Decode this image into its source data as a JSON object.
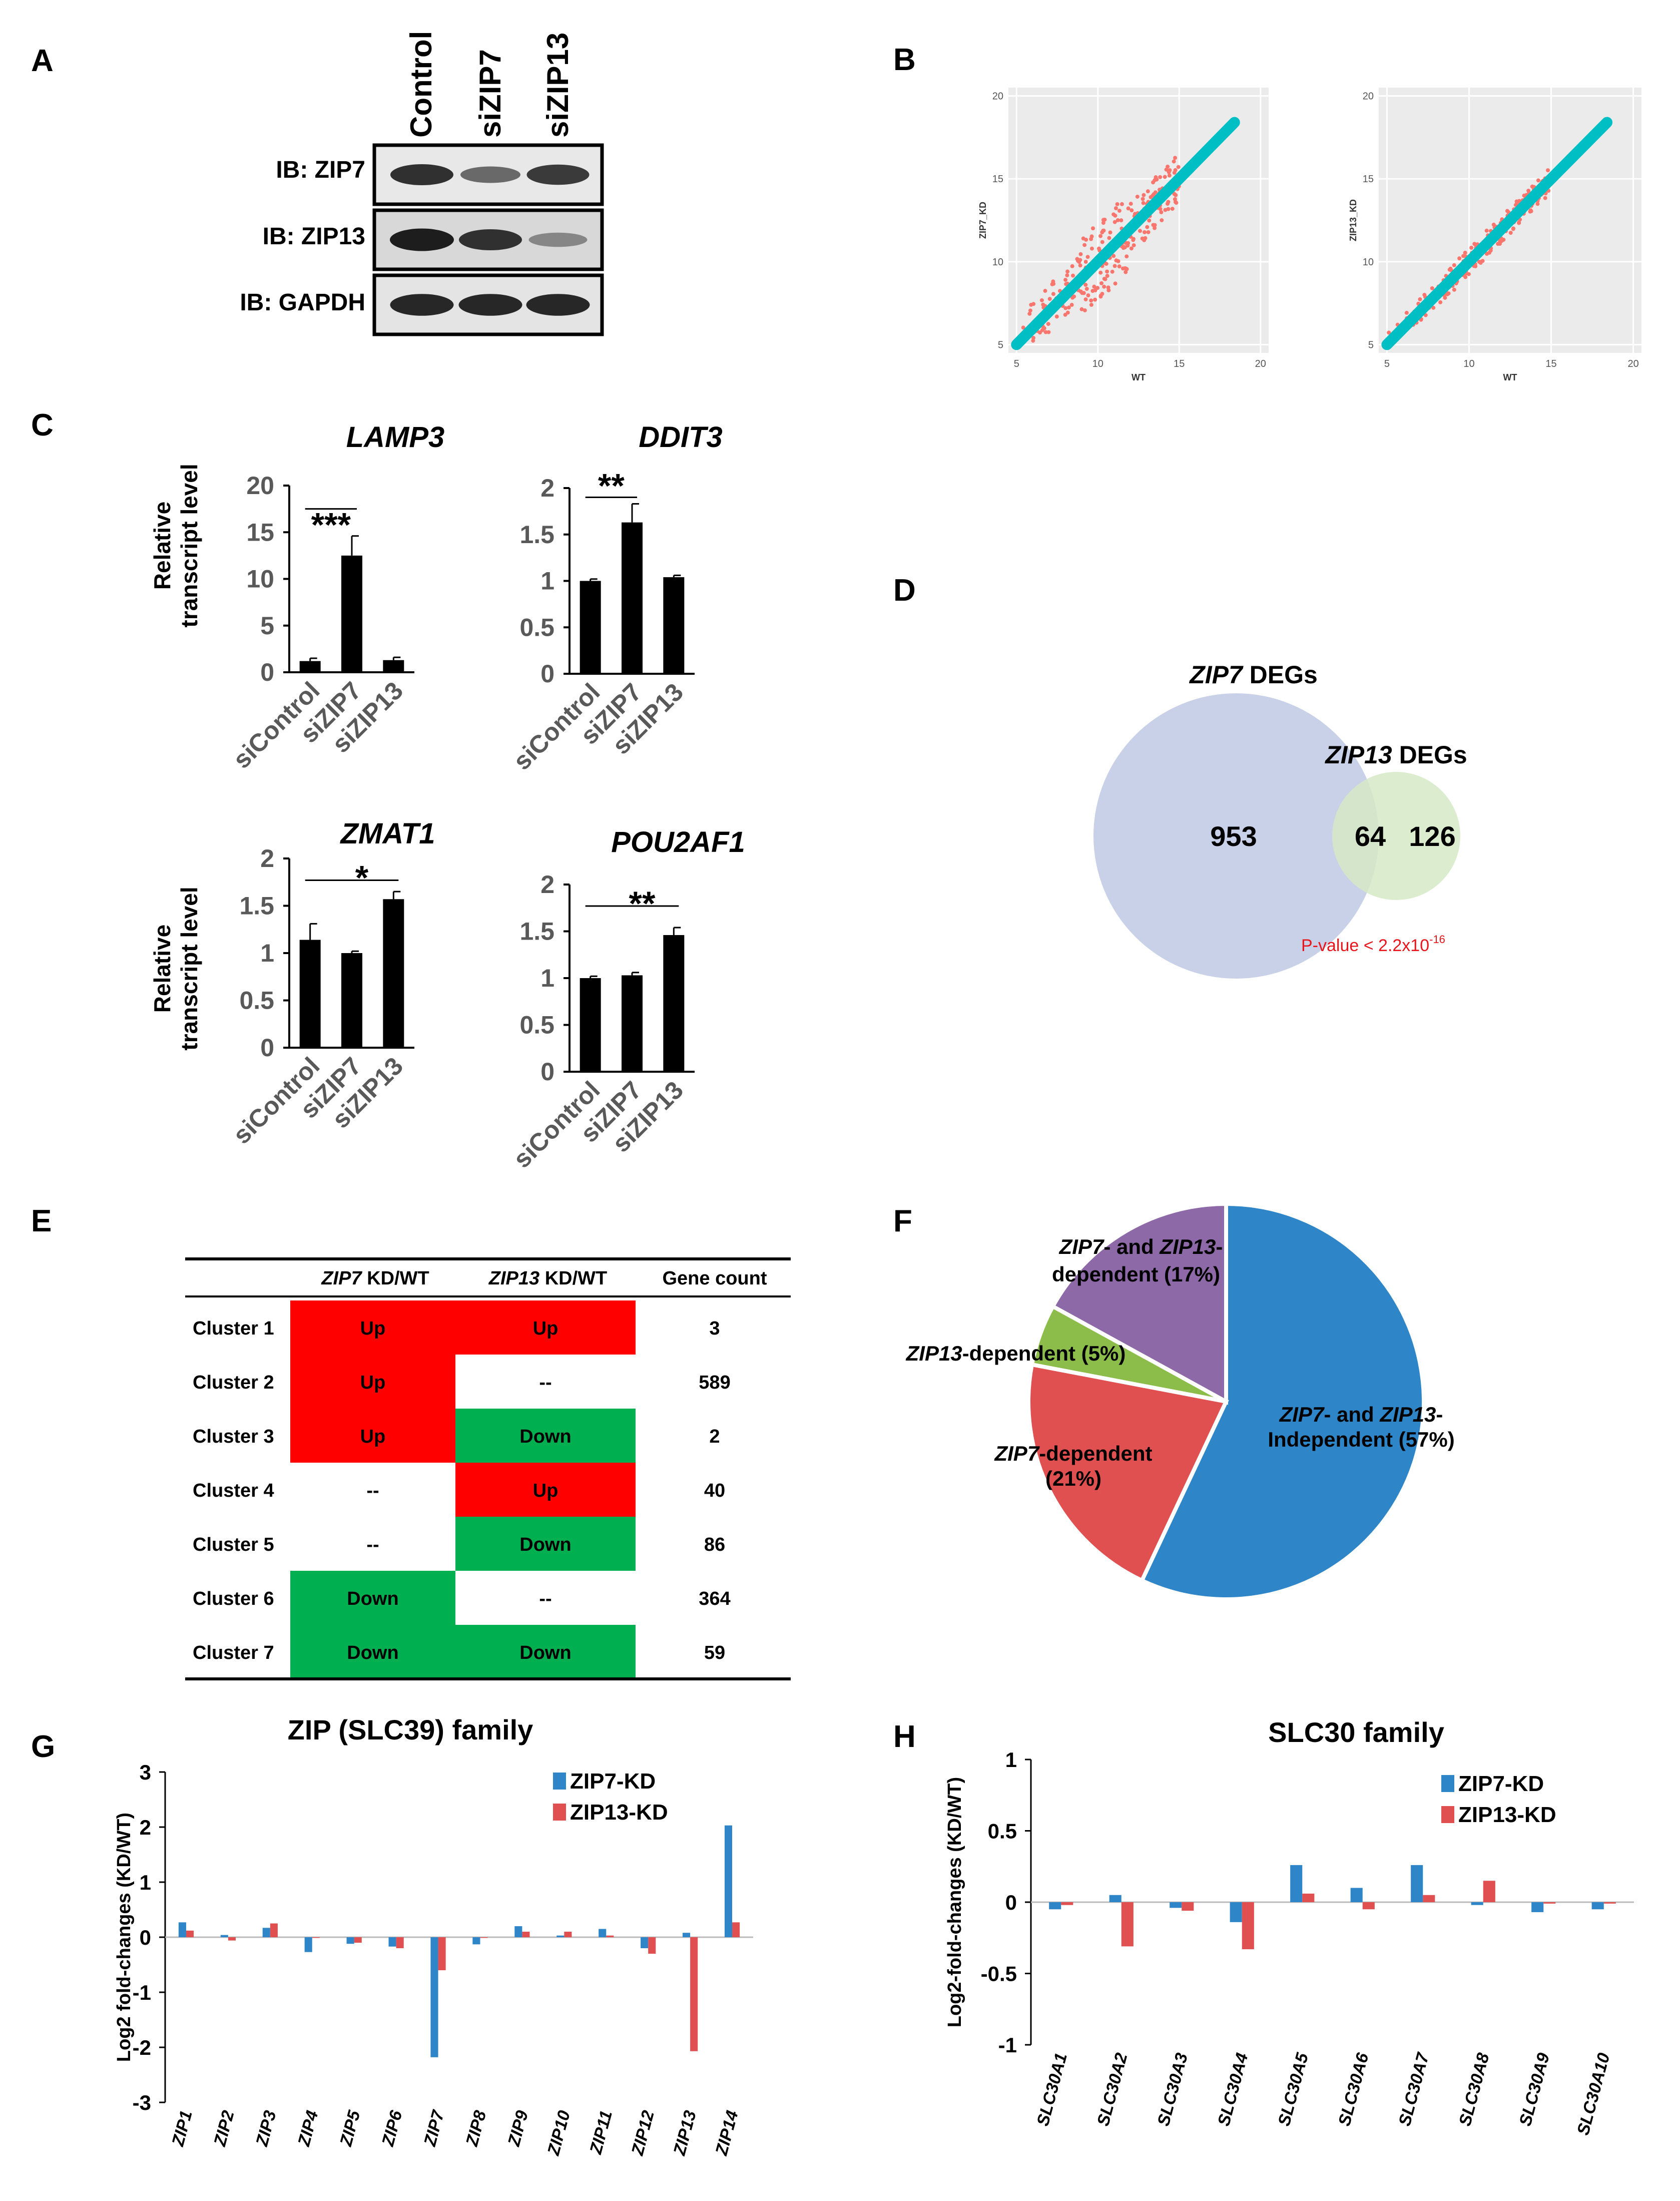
{
  "panels": {
    "a": "A",
    "b": "B",
    "c": "C",
    "d": "D",
    "e": "E",
    "f": "F",
    "g": "G",
    "h": "H"
  },
  "panel_a": {
    "lanes": [
      "Control",
      "siZIP7",
      "siZIP13"
    ],
    "blots": [
      "IB: ZIP7",
      "IB: ZIP13",
      "IB: GAPDH"
    ],
    "band_intensity": [
      [
        0.8,
        0.5,
        0.75
      ],
      [
        0.9,
        0.8,
        0.35
      ],
      [
        0.85,
        0.85,
        0.85
      ]
    ]
  },
  "panel_b": {
    "plots": [
      {
        "xlabel": "WT",
        "ylabel": "ZIP7_KD",
        "ticks": [
          "5",
          "10",
          "15",
          "20"
        ]
      },
      {
        "xlabel": "WT",
        "ylabel": "ZIP13_KD",
        "ticks": [
          "5",
          "10",
          "15",
          "20"
        ]
      }
    ],
    "colors": {
      "deg": "#f8766d",
      "non_deg": "#00bfc4"
    }
  },
  "panel_c": {
    "ylabel_line1": "Relative",
    "ylabel_line2": "transcript level",
    "categories": [
      "siControl",
      "siZIP7",
      "siZIP13"
    ],
    "charts": [
      {
        "gene": "LAMP3",
        "values": [
          1.2,
          12.5,
          1.3
        ],
        "errors": [
          0.3,
          2.1,
          0.3
        ],
        "ymax": 20,
        "ticks": [
          "0",
          "5",
          "10",
          "15",
          "20"
        ],
        "sig": "***",
        "sig_span": [
          0,
          1
        ]
      },
      {
        "gene": "DDIT3",
        "values": [
          1.0,
          1.63,
          1.04
        ],
        "errors": [
          0.02,
          0.2,
          0.02
        ],
        "ymax": 2,
        "ticks": [
          "0",
          "0.5",
          "1",
          "1.5",
          "2"
        ],
        "sig": "**",
        "sig_span": [
          0,
          1
        ]
      },
      {
        "gene": "ZMAT1",
        "values": [
          1.14,
          1.0,
          1.57
        ],
        "errors": [
          0.17,
          0.02,
          0.08
        ],
        "ymax": 2,
        "ticks": [
          "0",
          "0.5",
          "1",
          "1.5",
          "2"
        ],
        "sig": "*",
        "sig_span": [
          0,
          2
        ]
      },
      {
        "gene": "POU2AF1",
        "values": [
          1.0,
          1.03,
          1.46
        ],
        "errors": [
          0.02,
          0.03,
          0.08
        ],
        "ymax": 2,
        "ticks": [
          "0",
          "0.5",
          "1",
          "1.5",
          "2"
        ],
        "sig": "**",
        "sig_span": [
          0,
          2
        ]
      }
    ]
  },
  "panel_d": {
    "zip7_gene": "ZIP7",
    "zip13_gene": "ZIP13",
    "degs_suffix": " DEGs",
    "only_zip7": "953",
    "overlap": "64",
    "only_zip13": "126",
    "pvalue_text": "P-value < 2.2x10",
    "pvalue_exp": "-16"
  },
  "panel_e": {
    "headers": {
      "c1_gene": "ZIP7",
      "c1_suffix": " KD/WT",
      "c2_gene": "ZIP13",
      "c2_suffix": " KD/WT",
      "count": "Gene count"
    },
    "rows": [
      {
        "cluster": "Cluster 1",
        "zip7": "Up",
        "zip13": "Up",
        "count": "3"
      },
      {
        "cluster": "Cluster 2",
        "zip7": "Up",
        "zip13": "--",
        "count": "589"
      },
      {
        "cluster": "Cluster 3",
        "zip7": "Up",
        "zip13": "Down",
        "count": "2"
      },
      {
        "cluster": "Cluster 4",
        "zip7": "--",
        "zip13": "Up",
        "count": "40"
      },
      {
        "cluster": "Cluster 5",
        "zip7": "--",
        "zip13": "Down",
        "count": "86"
      },
      {
        "cluster": "Cluster 6",
        "zip7": "Down",
        "zip13": "--",
        "count": "364"
      },
      {
        "cluster": "Cluster 7",
        "zip7": "Down",
        "zip13": "Down",
        "count": "59"
      }
    ],
    "colors": {
      "up": "#ff0000",
      "down": "#00b050"
    }
  },
  "panel_f": {
    "chart_data": {
      "type": "pie",
      "slices": [
        {
          "name": "ZIP7- and ZIP13-Independent",
          "value": 57,
          "color": "#2e86c8"
        },
        {
          "name": "ZIP7-dependent",
          "value": 21,
          "color": "#e05050"
        },
        {
          "name": "ZIP13-dependent",
          "value": 5,
          "color": "#8cbd4a"
        },
        {
          "name": "ZIP7- and ZIP13-dependent",
          "value": 17,
          "color": "#8e69a8"
        }
      ]
    },
    "labels": {
      "indep_g1": "ZIP7",
      "indep_m1": "- and ",
      "indep_g2": "ZIP13",
      "indep_m2": "-",
      "indep_l2": "Independent (57%)",
      "z7_g": "ZIP7",
      "z7_m": "-dependent",
      "z7_pct": "(21%)",
      "z13_g": "ZIP13",
      "z13_m": "-dependent (5%)",
      "both_g1": "ZIP7",
      "both_m1": "- and ",
      "both_g2": "ZIP13",
      "both_m2": "-",
      "both_l2": "dependent (17%)"
    }
  },
  "panel_g": {
    "chart_data": {
      "type": "bar",
      "title": "ZIP (SLC39) family",
      "ylabel": "Log2 fold-changes (KD/WT)",
      "ylim": [
        -3,
        3
      ],
      "yticks": [
        "-3",
        "-2",
        "-1",
        "0",
        "1",
        "2",
        "3"
      ],
      "categories": [
        "ZIP1",
        "ZIP2",
        "ZIP3",
        "ZIP4",
        "ZIP5",
        "ZIP6",
        "ZIP7",
        "ZIP8",
        "ZIP9",
        "ZIP10",
        "ZIP11",
        "ZIP12",
        "ZIP13",
        "ZIP14"
      ],
      "series": [
        {
          "name": "ZIP7-KD",
          "color": "#2e86c8",
          "values": [
            0.27,
            0.04,
            0.17,
            -0.27,
            -0.12,
            -0.17,
            -2.18,
            -0.13,
            0.2,
            0.03,
            0.15,
            -0.2,
            0.08,
            2.03
          ]
        },
        {
          "name": "ZIP13-KD",
          "color": "#e05050",
          "values": [
            0.12,
            -0.06,
            0.25,
            0.0,
            -0.1,
            -0.2,
            -0.6,
            0.0,
            0.1,
            0.1,
            0.03,
            -0.3,
            -2.07,
            0.27
          ]
        }
      ]
    }
  },
  "panel_h": {
    "chart_data": {
      "type": "bar",
      "title": "SLC30 family",
      "ylabel": "Log2-fold-changes (KD/WT)",
      "ylim": [
        -1,
        1
      ],
      "yticks": [
        "-1",
        "-0.5",
        "0",
        "0.5",
        "1"
      ],
      "categories": [
        "SLC30A1",
        "SLC30A2",
        "SLC30A3",
        "SLC30A4",
        "SLC30A5",
        "SLC30A6",
        "SLC30A7",
        "SLC30A8",
        "SLC30A9",
        "SLC30A10"
      ],
      "series": [
        {
          "name": "ZIP7-KD",
          "color": "#2e86c8",
          "values": [
            -0.05,
            0.05,
            -0.04,
            -0.14,
            0.26,
            0.1,
            0.26,
            -0.02,
            -0.07,
            -0.05
          ]
        },
        {
          "name": "ZIP13-KD",
          "color": "#e05050",
          "values": [
            -0.02,
            -0.31,
            -0.06,
            -0.33,
            0.06,
            -0.05,
            0.05,
            0.15,
            -0.01,
            -0.01
          ]
        }
      ]
    }
  }
}
